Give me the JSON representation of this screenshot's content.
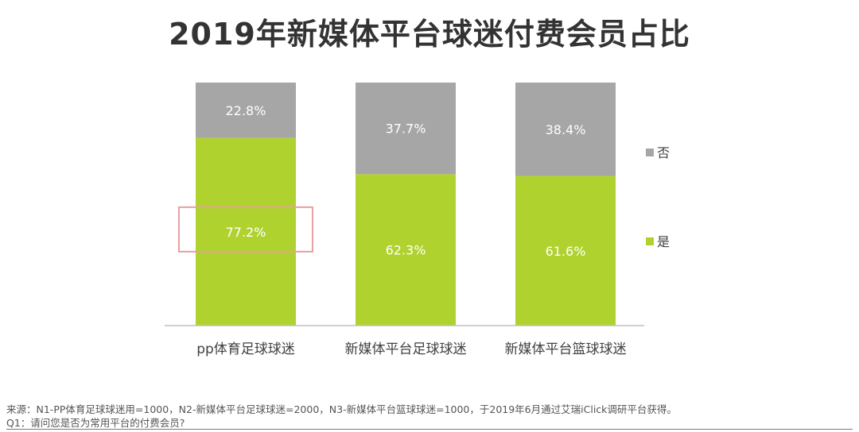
{
  "title": "2019年新媒体平台球迷付费会员占比",
  "colors": {
    "yes": "#b0d22f",
    "no": "#a6a6a6",
    "axis": "#bfbfbf",
    "highlight": "#e8a0a0",
    "bar_label": "#ffffff"
  },
  "chart_data": {
    "type": "bar",
    "stacked": true,
    "percent": true,
    "categories": [
      "pp体育足球球迷",
      "新媒体平台足球球迷",
      "新媒体平台篮球球迷"
    ],
    "series": [
      {
        "name": "是",
        "values": [
          77.2,
          62.3,
          61.6
        ],
        "labels": [
          "77.2%",
          "62.3%",
          "61.6%"
        ]
      },
      {
        "name": "否",
        "values": [
          22.8,
          37.7,
          38.4
        ],
        "labels": [
          "22.8%",
          "37.7%",
          "38.4%"
        ]
      }
    ],
    "ylim": [
      0,
      100
    ],
    "legend_position": "right",
    "highlight": {
      "series": 0,
      "category": 0
    }
  },
  "footer": {
    "source": "来源：N1-PP体育足球球迷用=1000，N2-新媒体平台足球球迷=2000，N3-新媒体平台篮球球迷=1000，于2019年6月通过艾瑞iClick调研平台获得。",
    "question": "Q1：请问您是否为常用平台的付费会员?"
  }
}
